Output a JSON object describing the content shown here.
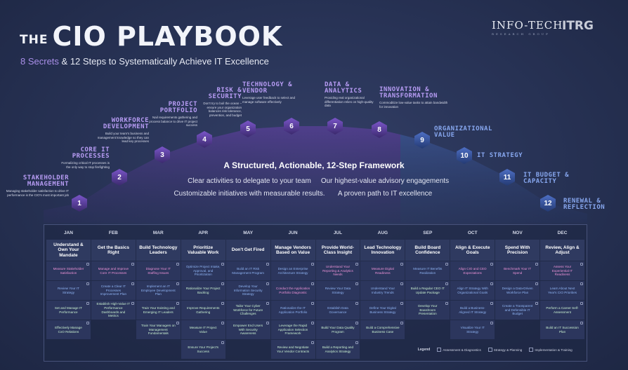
{
  "header": {
    "title_prefix": "THE",
    "title": "CIO PLAYBOOK",
    "subtitle_highlight": "8 Secrets",
    "subtitle_rest": " & 12 Steps to Systematically Achieve IT Excellence"
  },
  "logos": {
    "infotech": "INFO-TECH",
    "infotech_sub": "RESEARCH GROUP",
    "itrg": "ITRG"
  },
  "colors": {
    "secret": "#b79cf4",
    "step": "#87a7ef",
    "assessment": "#ee93d8",
    "strategy": "#8fb4f4",
    "implementation": "#c9f0d0"
  },
  "steps": [
    {
      "n": "1",
      "label": "STAKEHOLDER MANAGEMENT",
      "desc": "Managing stakeholder satisfaction to drive IT performance is the CIO's most important job",
      "kind": "secret"
    },
    {
      "n": "2",
      "label": "CORE IT PROCESSES",
      "desc": "Formalizing critical IT processes is the only way to stop firefighting",
      "kind": "secret"
    },
    {
      "n": "3",
      "label": "WORKFORCE DEVELOPMENT",
      "desc": "Build your team's business and management knowledge so they can lead key processes",
      "kind": "secret"
    },
    {
      "n": "4",
      "label": "PROJECT PORTFOLIO",
      "desc": "Nail requirements gathering and process balance to drive IT project success",
      "kind": "secret"
    },
    {
      "n": "5",
      "label": "RISK & SECURITY",
      "desc": "Don't try to boil the ocean – ensure your organization balances risk tolerance, prevention, and budget",
      "kind": "secret"
    },
    {
      "n": "6",
      "label": "TECHNOLOGY & VENDOR",
      "desc": "Leverage user feedback to select and manage software effectively",
      "kind": "secret"
    },
    {
      "n": "7",
      "label": "DATA & ANALYTICS",
      "desc": "Providing real organizational differentiation relies on high-quality data",
      "kind": "secret"
    },
    {
      "n": "8",
      "label": "INNOVATION & TRANSFORMATION",
      "desc": "Commoditize low-value tasks to attain bandwidth for innovation",
      "kind": "secret"
    },
    {
      "n": "9",
      "label": "ORGANIZATIONAL VALUE",
      "desc": "",
      "kind": "step"
    },
    {
      "n": "10",
      "label": "IT STRATEGY",
      "desc": "",
      "kind": "step"
    },
    {
      "n": "11",
      "label": "IT BUDGET & CAPACITY",
      "desc": "",
      "kind": "step"
    },
    {
      "n": "12",
      "label": "RENEWAL & REFLECTION",
      "desc": "",
      "kind": "step"
    }
  ],
  "framework": {
    "title": "A Structured, Actionable, 12-Step Framework",
    "points": [
      "Clear activities to delegate to your team",
      "Our highest-value advisory engagements",
      "Customizable initiatives with measurable results.",
      "A proven path to IT excellence"
    ]
  },
  "calendar": [
    {
      "month": "JAN",
      "theme": "Understand & Own Your Mandate",
      "items": [
        {
          "t": "Measure Stakeholder Satisfaction",
          "k": "a"
        },
        {
          "t": "Review Your IT Strategy",
          "k": "s"
        },
        {
          "t": "Set and Manage IT Performance",
          "k": "i"
        },
        {
          "t": "Effectively Manage CxO Relations",
          "k": "i"
        }
      ]
    },
    {
      "month": "FEB",
      "theme": "Get the Basics Right",
      "items": [
        {
          "t": "Manage and Improve Core IT Processes",
          "k": "a"
        },
        {
          "t": "Create a Clear IT Processes Improvement Plan",
          "k": "s"
        },
        {
          "t": "Establish High-Value IT Performance Dashboards and Metrics",
          "k": "i"
        }
      ]
    },
    {
      "month": "MAR",
      "theme": "Build Technology Leaders",
      "items": [
        {
          "t": "Diagnose Your IT Staffing Issues",
          "k": "a"
        },
        {
          "t": "Implement an IT Employee Development Plan",
          "k": "s"
        },
        {
          "t": "Train Your Existing and Emerging IT Leaders",
          "k": "i"
        },
        {
          "t": "Train Your Managers on Management Fundamentals",
          "k": "i"
        }
      ]
    },
    {
      "month": "APR",
      "theme": "Prioritize Valuable Work",
      "items": [
        {
          "t": "Optimize Project Intake, Approval, and Prioritization",
          "k": "s"
        },
        {
          "t": "Rationalize Your Project Backlog",
          "k": "i"
        },
        {
          "t": "Improve Requirements Gathering",
          "k": "i"
        },
        {
          "t": "Measure IT Project Value",
          "k": "i"
        },
        {
          "t": "Ensure Your Project's Success",
          "k": "i"
        }
      ]
    },
    {
      "month": "MAY",
      "theme": "Don't Get Fired",
      "items": [
        {
          "t": "Build an IT Risk Management Program",
          "k": "s"
        },
        {
          "t": "Develop Your Information Security Strategy",
          "k": "s"
        },
        {
          "t": "Tailor Your Cyber Workforce for Future Challenges",
          "k": "i"
        },
        {
          "t": "Empower End Users With Security Awareness",
          "k": "i"
        }
      ]
    },
    {
      "month": "JUN",
      "theme": "Manage Vendors Based on Value",
      "items": [
        {
          "t": "Design an Enterprise Architecture Strategy",
          "k": "s"
        },
        {
          "t": "Conduct the Application Portfolio Diagnostic",
          "k": "a"
        },
        {
          "t": "Rationalize the IT Application Portfolio",
          "k": "s"
        },
        {
          "t": "Leverage the Rapid Application Selection Framework",
          "k": "i"
        },
        {
          "t": "Review and Negotiate Your Vendor Contracts",
          "k": "i"
        }
      ]
    },
    {
      "month": "JUL",
      "theme": "Provide World-Class Insight",
      "items": [
        {
          "t": "Understand Your Reporting & Analytics Needs",
          "k": "a"
        },
        {
          "t": "Review Your Data Strategy",
          "k": "s"
        },
        {
          "t": "Establish Data Governance",
          "k": "s"
        },
        {
          "t": "Build Your Data Quality Program",
          "k": "i"
        },
        {
          "t": "Build a Reporting and Analytics Strategy",
          "k": "i"
        }
      ]
    },
    {
      "month": "AUG",
      "theme": "Lead Technology Innovation",
      "items": [
        {
          "t": "Measure Digital Readiness",
          "k": "a"
        },
        {
          "t": "Understand Your Industry Trends",
          "k": "s"
        },
        {
          "t": "Define Your Digital Business Strategy",
          "k": "s"
        },
        {
          "t": "Build a Comprehensive Business Case",
          "k": "i"
        }
      ]
    },
    {
      "month": "SEP",
      "theme": "Build Board Confidence",
      "items": [
        {
          "t": "Measure IT Benefits Realization",
          "k": "s"
        },
        {
          "t": "Build a Regular CEO IT Update Package",
          "k": "i"
        },
        {
          "t": "Develop Your Boardroom Presentation",
          "k": "i"
        }
      ]
    },
    {
      "month": "OCT",
      "theme": "Align & Execute Goals",
      "items": [
        {
          "t": "Align CIO and CEO Expectations",
          "k": "a"
        },
        {
          "t": "Align IT Strategy With Organizational Goals",
          "k": "s"
        },
        {
          "t": "Build a Business-Aligned IT Strategy",
          "k": "s"
        },
        {
          "t": "Visualize Your IT Strategy",
          "k": "s"
        }
      ]
    },
    {
      "month": "NOV",
      "theme": "Spend With Precision",
      "items": [
        {
          "t": "Benchmark Your IT Spend",
          "k": "a"
        },
        {
          "t": "Design a Data-Driven Workforce Plan",
          "k": "s"
        },
        {
          "t": "Create a Transparent and Defensible IT Budget",
          "k": "s"
        }
      ]
    },
    {
      "month": "DEC",
      "theme": "Review, Align & Adjust",
      "items": [
        {
          "t": "Assess Your Experiential IT Readiness",
          "k": "a"
        },
        {
          "t": "Learn About Next Year's CIO Priorities",
          "k": "s"
        },
        {
          "t": "Perform a Career Self-Assessment",
          "k": "i"
        },
        {
          "t": "Build an IT Succession Plan",
          "k": "i"
        }
      ]
    }
  ],
  "legend": {
    "title": "Legend",
    "items": [
      "Assessment & Diagnostics",
      "Strategy & Planning",
      "Implementation & Training"
    ]
  }
}
